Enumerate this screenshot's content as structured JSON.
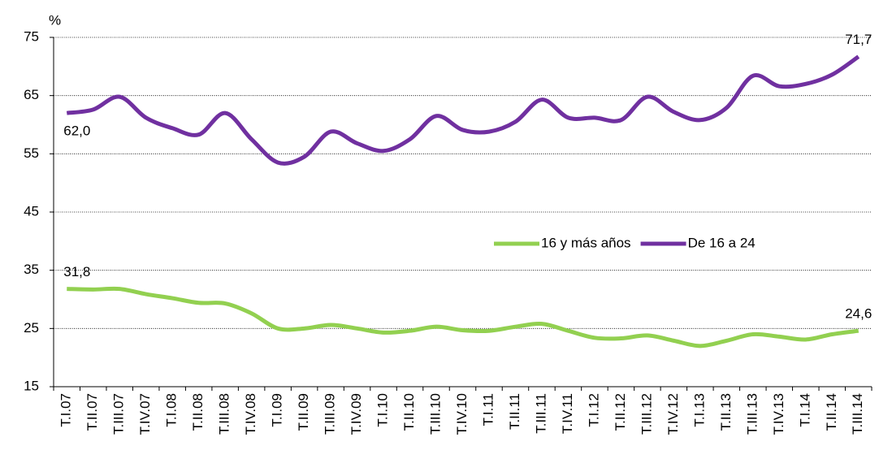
{
  "chart_data": {
    "type": "line",
    "ylabel": "%",
    "categories": [
      "T.I.07",
      "T.II.07",
      "T.III.07",
      "T.IV.07",
      "T.I.08",
      "T.II.08",
      "T.III.08",
      "T.IV.08",
      "T.I.09",
      "T.II.09",
      "T.III.09",
      "T.IV.09",
      "T.I.10",
      "T.II.10",
      "T.III.10",
      "T.IV.10",
      "T.I.11",
      "T.II.11",
      "T.III.11",
      "T.IV.11",
      "T.I.12",
      "T.II.12",
      "T.III.12",
      "T.IV.12",
      "T.I.13",
      "T.II.13",
      "T.III.13",
      "T.IV.13",
      "T.I.14",
      "T.II.14",
      "T.III.14"
    ],
    "series": [
      {
        "name": "16 y más años",
        "color": "#92d050",
        "values": [
          31.8,
          31.7,
          31.8,
          30.9,
          30.2,
          29.4,
          29.3,
          27.6,
          25.0,
          25.0,
          25.6,
          25.0,
          24.3,
          24.6,
          25.3,
          24.7,
          24.6,
          25.3,
          25.8,
          24.6,
          23.4,
          23.3,
          23.8,
          22.9,
          22.0,
          22.9,
          24.0,
          23.6,
          23.1,
          24.0,
          24.6
        ],
        "value_labels": [
          "31,8",
          null,
          null,
          null,
          null,
          null,
          null,
          null,
          null,
          null,
          null,
          null,
          null,
          null,
          null,
          null,
          null,
          null,
          null,
          null,
          null,
          null,
          null,
          null,
          null,
          null,
          null,
          null,
          null,
          null,
          "24,6"
        ]
      },
      {
        "name": "De 16 a 24",
        "color": "#7030a0",
        "values": [
          62.0,
          62.6,
          64.8,
          61.2,
          59.4,
          58.3,
          62.0,
          57.5,
          53.5,
          54.5,
          58.8,
          56.8,
          55.5,
          57.5,
          61.5,
          59.1,
          58.8,
          60.5,
          64.3,
          61.2,
          61.2,
          60.8,
          64.8,
          62.2,
          60.8,
          62.9,
          68.4,
          66.6,
          67.0,
          68.6,
          71.7
        ],
        "value_labels": [
          "62,0",
          null,
          null,
          null,
          null,
          null,
          null,
          null,
          null,
          null,
          null,
          null,
          null,
          null,
          null,
          null,
          null,
          null,
          null,
          null,
          null,
          null,
          null,
          null,
          null,
          null,
          null,
          null,
          null,
          null,
          "71,7"
        ]
      }
    ],
    "ylim": [
      15,
      75
    ],
    "yticks": [
      15,
      25,
      35,
      45,
      55,
      65,
      75
    ],
    "grid": true
  }
}
